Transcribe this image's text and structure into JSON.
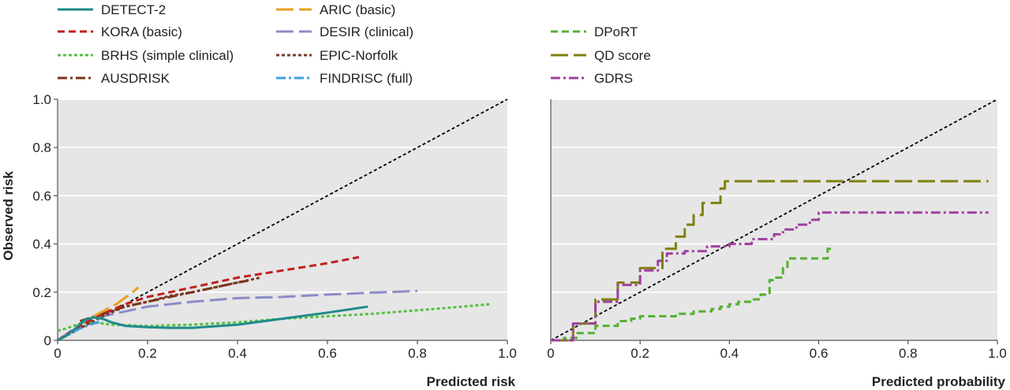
{
  "legend": [
    {
      "name": "DETECT-2",
      "color": "#1f8a8a",
      "dash": "solid"
    },
    {
      "name": "ARIC (basic)",
      "color": "#e8a020",
      "dash": "longdash"
    },
    {
      "name": "KORA (basic)",
      "color": "#c0201f",
      "dash": "dash"
    },
    {
      "name": "DESIR (clinical)",
      "color": "#8c8cc8",
      "dash": "longdash"
    },
    {
      "name": "BRHS (simple clinical)",
      "color": "#55c040",
      "dash": "shortdash"
    },
    {
      "name": "EPIC-Norfolk",
      "color": "#7a3a2a",
      "dash": "shortdash"
    },
    {
      "name": "AUSDRISK",
      "color": "#7a3418",
      "dash": "dashdot"
    },
    {
      "name": "FINDRISC (full)",
      "color": "#3aa0e0",
      "dash": "dashdot"
    },
    {
      "name": "DPoRT",
      "color": "#55b030",
      "dash": "dash"
    },
    {
      "name": "QD score",
      "color": "#808010",
      "dash": "longdash"
    },
    {
      "name": "GDRS",
      "color": "#a040a0",
      "dash": "dashdot"
    }
  ],
  "chart_data": [
    {
      "type": "line",
      "xlabel": "Predicted risk",
      "ylabel": "Observed risk",
      "xlim": [
        0,
        1.0
      ],
      "ylim": [
        0,
        1.0
      ],
      "x_ticks": [
        "0",
        "0.2",
        "0.4",
        "0.6",
        "0.8",
        "1.0"
      ],
      "y_ticks": [
        "0",
        "0.2",
        "0.4",
        "0.6",
        "0.8",
        "1.0"
      ],
      "grid": true,
      "reference_line": {
        "x": [
          0,
          1.0
        ],
        "y": [
          0,
          1.0
        ],
        "color": "#000000"
      },
      "series": [
        {
          "name": "DESIR (clinical)",
          "color": "#8c8cc8",
          "dash": "longdash",
          "x": [
            0,
            0.03,
            0.06,
            0.1,
            0.15,
            0.2,
            0.3,
            0.4,
            0.5,
            0.6,
            0.7,
            0.8
          ],
          "y": [
            0,
            0.04,
            0.08,
            0.1,
            0.12,
            0.14,
            0.16,
            0.175,
            0.18,
            0.19,
            0.198,
            0.205
          ]
        },
        {
          "name": "BRHS (simple clinical)",
          "color": "#55c040",
          "dash": "shortdash",
          "x": [
            0,
            0.02,
            0.05,
            0.08,
            0.12,
            0.2,
            0.3,
            0.4,
            0.5,
            0.6,
            0.7,
            0.8,
            0.9,
            0.96
          ],
          "y": [
            0.04,
            0.05,
            0.07,
            0.075,
            0.065,
            0.06,
            0.065,
            0.075,
            0.09,
            0.1,
            0.11,
            0.125,
            0.14,
            0.15
          ]
        },
        {
          "name": "EPIC-Norfolk",
          "color": "#7a3a2a",
          "dash": "shortdash",
          "x": [
            0,
            0.05,
            0.1,
            0.15,
            0.2,
            0.25,
            0.3,
            0.35,
            0.4,
            0.45
          ],
          "y": [
            0,
            0.05,
            0.1,
            0.14,
            0.16,
            0.185,
            0.2,
            0.22,
            0.24,
            0.26
          ]
        },
        {
          "name": "AUSDRISK",
          "color": "#7a3418",
          "dash": "dashdot",
          "x": [
            0.05,
            0.1,
            0.15,
            0.2,
            0.25,
            0.3,
            0.35,
            0.4,
            0.43
          ],
          "y": [
            0.08,
            0.11,
            0.14,
            0.16,
            0.18,
            0.2,
            0.22,
            0.24,
            0.25
          ]
        },
        {
          "name": "FINDRISC (full)",
          "color": "#3aa0e0",
          "dash": "dashdot",
          "x": [
            0,
            0.02,
            0.05,
            0.08,
            0.1
          ],
          "y": [
            0,
            0.02,
            0.05,
            0.07,
            0.08
          ]
        },
        {
          "name": "KORA (basic)",
          "color": "#c0201f",
          "dash": "dash",
          "x": [
            0,
            0.05,
            0.1,
            0.15,
            0.2,
            0.3,
            0.4,
            0.5,
            0.6,
            0.67
          ],
          "y": [
            0,
            0.06,
            0.11,
            0.15,
            0.18,
            0.22,
            0.26,
            0.29,
            0.32,
            0.345
          ]
        },
        {
          "name": "ARIC (basic)",
          "color": "#e8a020",
          "dash": "longdash",
          "x": [
            0.08,
            0.1,
            0.13,
            0.16,
            0.18
          ],
          "y": [
            0.1,
            0.12,
            0.15,
            0.19,
            0.22
          ]
        },
        {
          "name": "DETECT-2",
          "color": "#1f8a8a",
          "dash": "solid",
          "x": [
            0,
            0.02,
            0.04,
            0.06,
            0.08,
            0.1,
            0.12,
            0.15,
            0.2,
            0.25,
            0.3,
            0.4,
            0.5,
            0.6,
            0.69
          ],
          "y": [
            0,
            0.02,
            0.05,
            0.085,
            0.095,
            0.09,
            0.075,
            0.06,
            0.055,
            0.052,
            0.052,
            0.065,
            0.09,
            0.115,
            0.14
          ]
        }
      ]
    },
    {
      "type": "line",
      "xlabel": "Predicted probability",
      "ylabel": "",
      "xlim": [
        0,
        1.0
      ],
      "ylim": [
        0,
        1.0
      ],
      "x_ticks": [
        "0",
        "0.2",
        "0.4",
        "0.6",
        "0.8",
        "1.0"
      ],
      "y_ticks": [],
      "grid": true,
      "reference_line": {
        "x": [
          0,
          1.0
        ],
        "y": [
          0,
          1.0
        ],
        "color": "#000000"
      },
      "series": [
        {
          "name": "DPoRT",
          "color": "#55b030",
          "dash": "dash",
          "step": true,
          "x": [
            0,
            0.03,
            0.06,
            0.1,
            0.15,
            0.18,
            0.2,
            0.25,
            0.28,
            0.3,
            0.32,
            0.36,
            0.38,
            0.4,
            0.42,
            0.45,
            0.47,
            0.48,
            0.49,
            0.5,
            0.52,
            0.53,
            0.55,
            0.56,
            0.58,
            0.6,
            0.62,
            0.625
          ],
          "y": [
            0,
            0.01,
            0.03,
            0.06,
            0.08,
            0.09,
            0.1,
            0.1,
            0.11,
            0.11,
            0.12,
            0.13,
            0.14,
            0.15,
            0.16,
            0.17,
            0.19,
            0.19,
            0.25,
            0.26,
            0.3,
            0.34,
            0.34,
            0.34,
            0.34,
            0.34,
            0.38,
            0.4
          ]
        },
        {
          "name": "QD score",
          "color": "#808010",
          "dash": "longdash",
          "step": true,
          "x": [
            0,
            0.05,
            0.1,
            0.15,
            0.2,
            0.25,
            0.28,
            0.3,
            0.32,
            0.34,
            0.35,
            0.37,
            0.38,
            0.39,
            0.5,
            0.7,
            0.9,
            0.98
          ],
          "y": [
            0,
            0.07,
            0.17,
            0.24,
            0.3,
            0.38,
            0.43,
            0.48,
            0.52,
            0.57,
            0.57,
            0.57,
            0.63,
            0.66,
            0.66,
            0.66,
            0.66,
            0.66
          ]
        },
        {
          "name": "GDRS",
          "color": "#a040a0",
          "dash": "dashdot",
          "step": true,
          "x": [
            0,
            0.05,
            0.1,
            0.15,
            0.2,
            0.24,
            0.26,
            0.3,
            0.35,
            0.4,
            0.45,
            0.5,
            0.52,
            0.55,
            0.58,
            0.6,
            0.7,
            0.8,
            0.9,
            0.98
          ],
          "y": [
            0,
            0.07,
            0.16,
            0.23,
            0.29,
            0.33,
            0.36,
            0.37,
            0.39,
            0.4,
            0.42,
            0.44,
            0.46,
            0.48,
            0.5,
            0.53,
            0.53,
            0.53,
            0.53,
            0.53
          ]
        }
      ]
    }
  ]
}
